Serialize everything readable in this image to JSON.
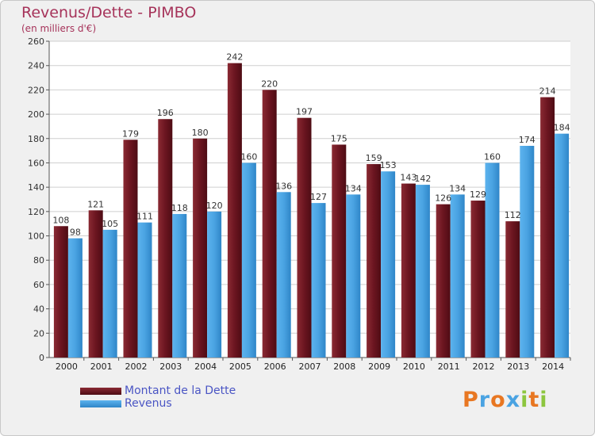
{
  "title": "Revenus/Dette - PIMBO",
  "subtitle": "(en milliers d'€)",
  "colors": {
    "debt": "#6b1520",
    "revenue": "#4aa3e2",
    "title": "#a6335a",
    "legend_text": "#4a55c4"
  },
  "chart_data": {
    "type": "bar",
    "categories": [
      "2000",
      "2001",
      "2002",
      "2003",
      "2004",
      "2005",
      "2006",
      "2007",
      "2008",
      "2009",
      "2010",
      "2011",
      "2012",
      "2013",
      "2014"
    ],
    "series": [
      {
        "name": "Montant de la Dette",
        "values": [
          108,
          121,
          179,
          196,
          180,
          242,
          220,
          197,
          175,
          159,
          143,
          126,
          129,
          112,
          214
        ]
      },
      {
        "name": "Revenus",
        "values": [
          98,
          105,
          111,
          118,
          120,
          160,
          136,
          127,
          134,
          153,
          142,
          134,
          160,
          174,
          184
        ]
      }
    ],
    "ylim": [
      0,
      260
    ],
    "yticks": [
      0,
      20,
      40,
      60,
      80,
      100,
      120,
      140,
      160,
      180,
      200,
      220,
      240,
      260
    ],
    "grid": true,
    "legend": "bottom-left"
  },
  "legend": {
    "items": [
      "Montant de la Dette",
      "Revenus"
    ]
  },
  "logo": {
    "letters": [
      "P",
      "r",
      "o",
      "x",
      "i",
      "t",
      "i"
    ],
    "colors": [
      "#e87722",
      "#4aa3e2",
      "#e87722",
      "#4aa3e2",
      "#8dc63f",
      "#e87722",
      "#8dc63f"
    ]
  }
}
